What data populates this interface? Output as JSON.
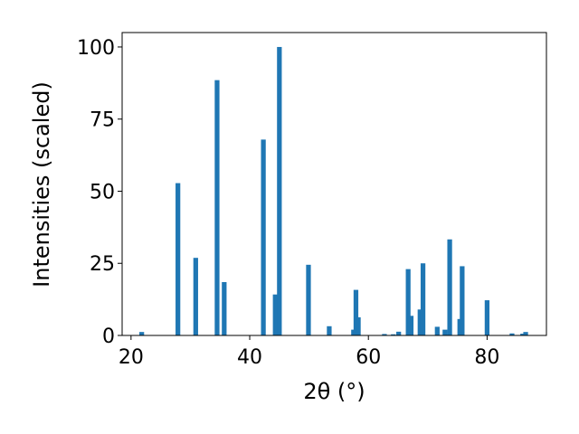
{
  "chart_data": {
    "type": "bar",
    "xlabel": "2θ (°)",
    "ylabel": "Intensities (scaled)",
    "xlim": [
      18.5,
      90
    ],
    "ylim": [
      0,
      105
    ],
    "bar_width": 0.8,
    "grid": false,
    "legend": "none",
    "bar_color": "#1f77b4",
    "xticks": [
      {
        "value": 20,
        "label": "20"
      },
      {
        "value": 40,
        "label": "40"
      },
      {
        "value": 60,
        "label": "60"
      },
      {
        "value": 80,
        "label": "80"
      }
    ],
    "yticks": [
      {
        "value": 0,
        "label": "0"
      },
      {
        "value": 25,
        "label": "25"
      },
      {
        "value": 50,
        "label": "50"
      },
      {
        "value": 75,
        "label": "75"
      },
      {
        "value": 100,
        "label": "100"
      }
    ],
    "x": [
      21.8,
      27.9,
      30.9,
      34.5,
      35.7,
      42.3,
      44.3,
      45.0,
      49.9,
      53.4,
      57.5,
      57.9,
      58.3,
      62.7,
      64.2,
      65.1,
      66.7,
      67.2,
      68.7,
      69.2,
      71.6,
      72.9,
      73.7,
      75.4,
      75.8,
      80.0,
      84.2,
      86.0,
      86.5
    ],
    "y": [
      1.2,
      52.8,
      26.9,
      88.5,
      18.5,
      67.9,
      14.2,
      100.0,
      24.5,
      3.2,
      2.0,
      15.8,
      6.3,
      0.5,
      0.4,
      1.3,
      23.0,
      6.8,
      9.0,
      25.0,
      3.0,
      2.0,
      33.3,
      5.7,
      24.0,
      12.2,
      0.7,
      0.6,
      1.2
    ]
  }
}
